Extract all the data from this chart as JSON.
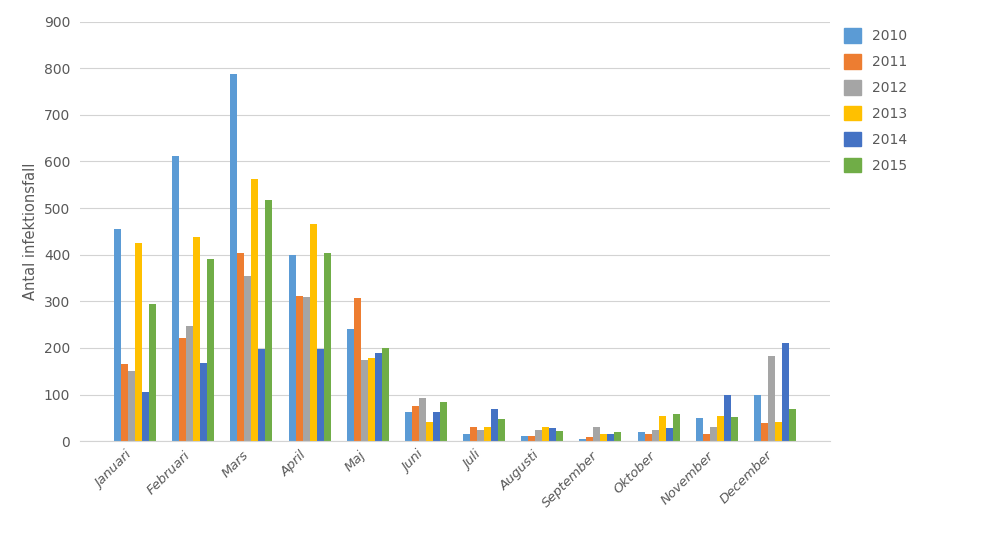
{
  "months": [
    "Januari",
    "Februari",
    "Mars",
    "April",
    "Maj",
    "Juni",
    "Juli",
    "Augusti",
    "September",
    "Oktober",
    "November",
    "December"
  ],
  "years": [
    "2010",
    "2011",
    "2012",
    "2013",
    "2014",
    "2015"
  ],
  "series_colors": {
    "2010": "#5B9BD5",
    "2011": "#ED7D31",
    "2012": "#A5A5A5",
    "2013": "#FFC000",
    "2014": "#4472C4",
    "2015": "#70AD47"
  },
  "data": {
    "2010": [
      455,
      612,
      787,
      400,
      240,
      63,
      15,
      12,
      5,
      20,
      50,
      100
    ],
    "2011": [
      165,
      222,
      404,
      312,
      308,
      75,
      30,
      10,
      8,
      15,
      15,
      40
    ],
    "2012": [
      150,
      248,
      355,
      310,
      175,
      93,
      25,
      25,
      30,
      25,
      30,
      182
    ],
    "2013": [
      425,
      438,
      562,
      465,
      178,
      42,
      30,
      30,
      15,
      55,
      55,
      42
    ],
    "2014": [
      105,
      167,
      197,
      198,
      190,
      63,
      70,
      28,
      15,
      28,
      100,
      210
    ],
    "2015": [
      295,
      390,
      518,
      403,
      200,
      85,
      48,
      22,
      20,
      58,
      52,
      68
    ]
  },
  "ylabel": "Antal infektionsfall",
  "ylim": [
    0,
    900
  ],
  "yticks": [
    0,
    100,
    200,
    300,
    400,
    500,
    600,
    700,
    800,
    900
  ],
  "background_color": "#FFFFFF",
  "grid_color": "#D3D3D3",
  "bar_width": 0.12,
  "figsize": [
    10.0,
    5.38
  ],
  "dpi": 100
}
